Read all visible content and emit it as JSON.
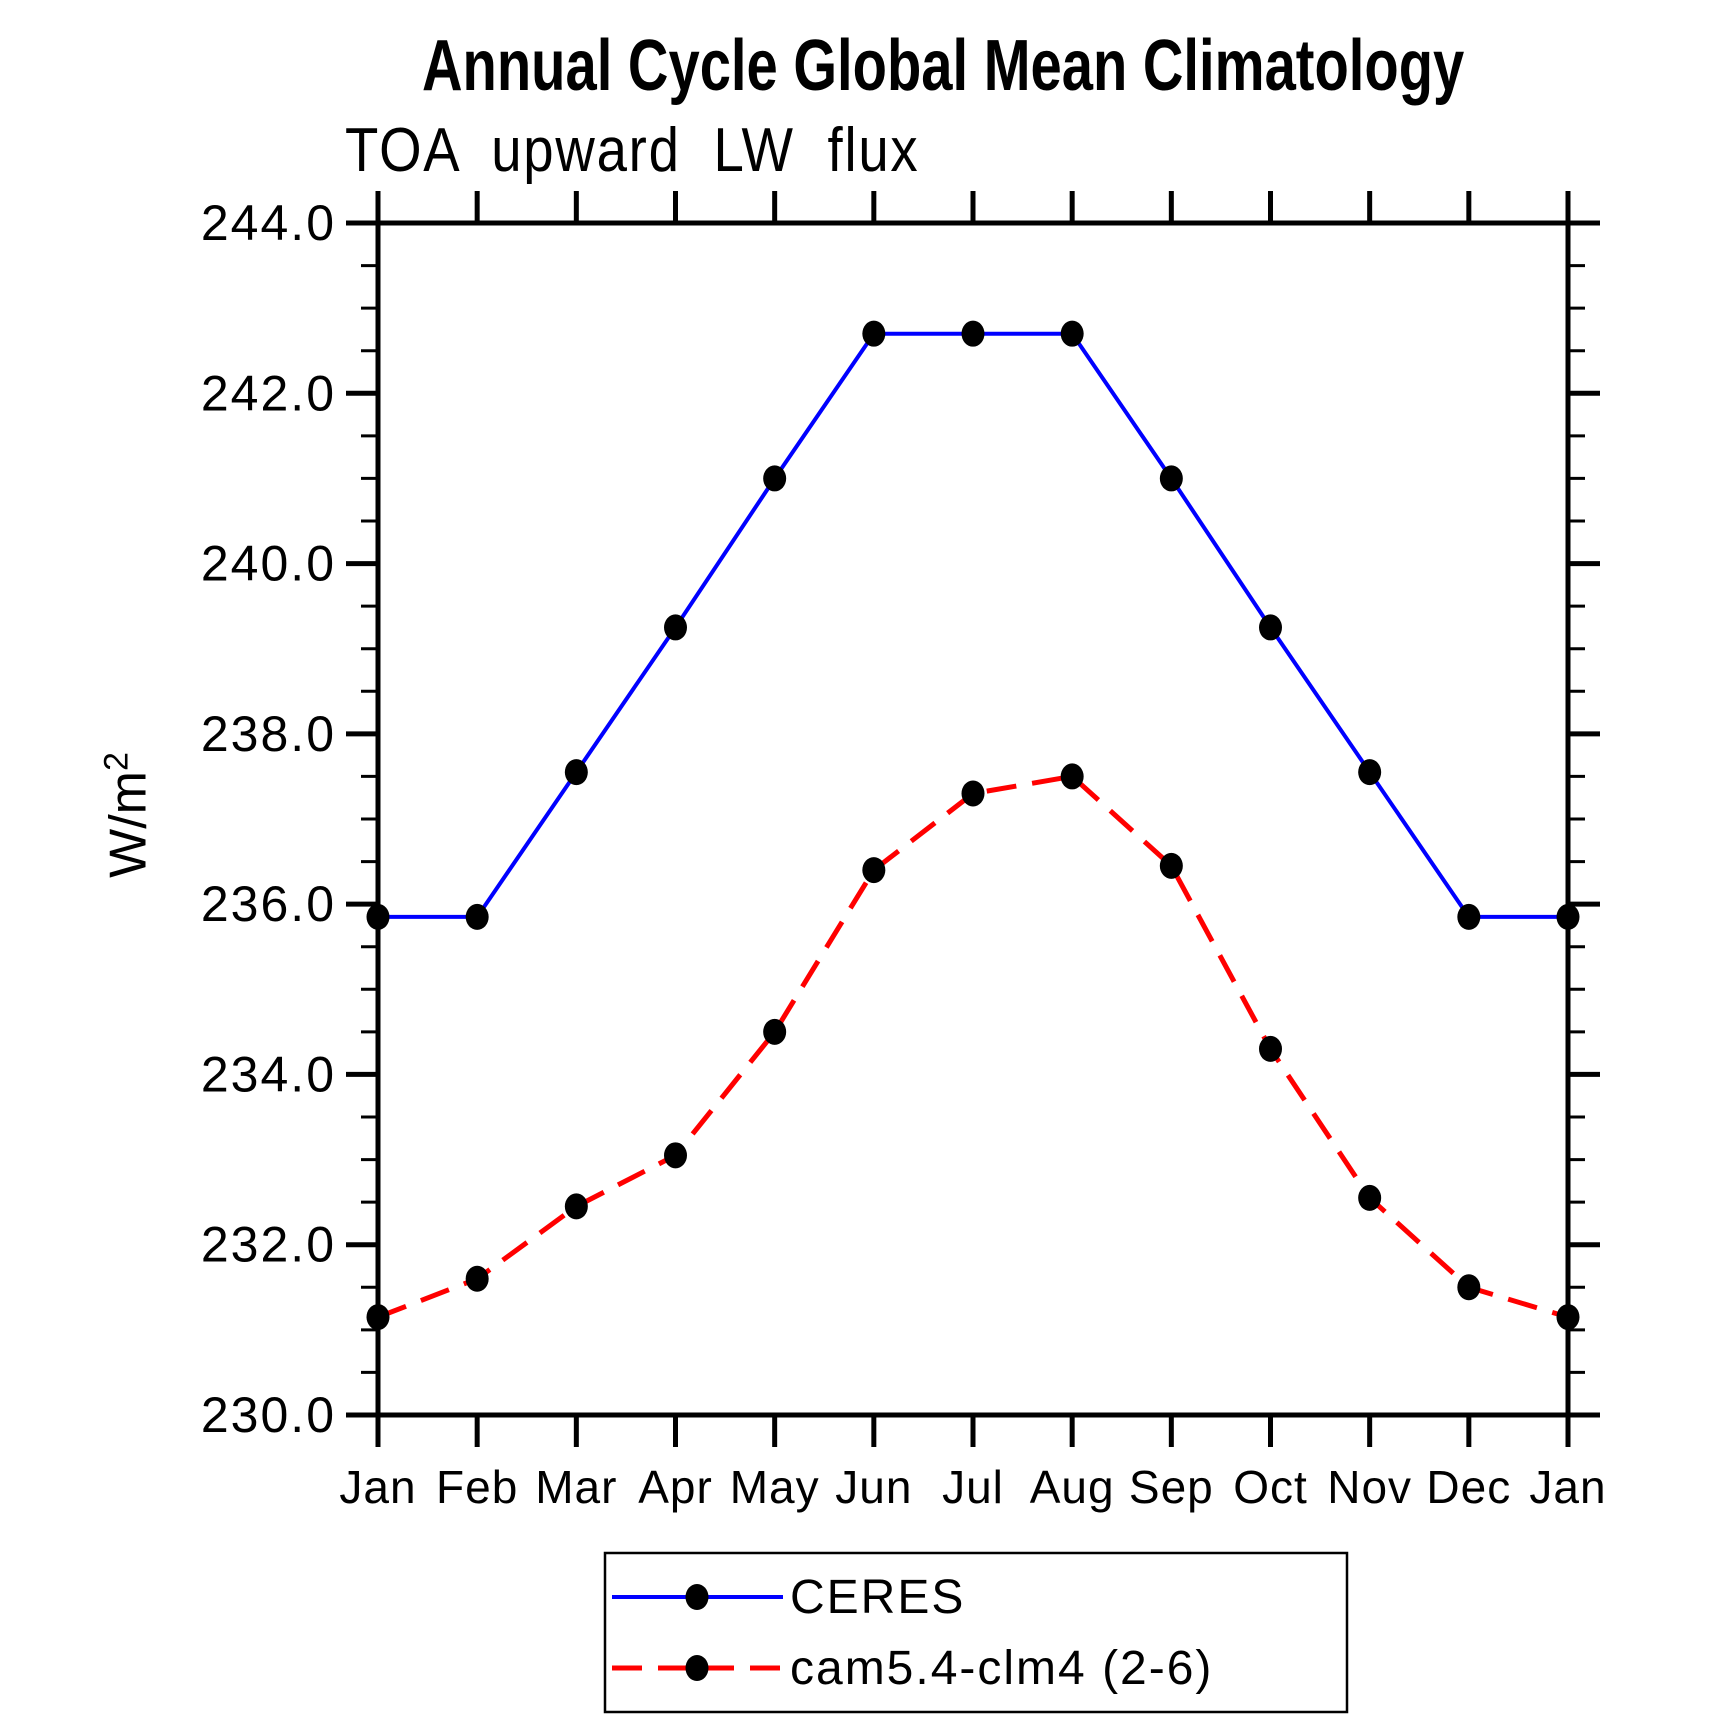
{
  "title": "Annual Cycle Global Mean Climatology",
  "subtitle": "TOA upward LW flux",
  "y_axis_label": {
    "base": "W/m",
    "superscript": "2"
  },
  "chart_data": {
    "type": "line",
    "categories": [
      "Jan",
      "Feb",
      "Mar",
      "Apr",
      "May",
      "Jun",
      "Jul",
      "Aug",
      "Sep",
      "Oct",
      "Nov",
      "Dec",
      "Jan"
    ],
    "series": [
      {
        "name": "CERES",
        "color": "#0000ff",
        "line_style": "solid",
        "marker": "filled-black-dot",
        "values": [
          235.85,
          235.85,
          237.55,
          239.25,
          241.0,
          242.7,
          242.7,
          242.7,
          241.0,
          239.25,
          237.55,
          235.85,
          235.85
        ]
      },
      {
        "name": "cam5.4-clm4 (2-6)",
        "color": "#ff0000",
        "line_style": "dashed",
        "marker": "filled-black-dot",
        "values": [
          231.15,
          231.6,
          232.45,
          233.05,
          234.5,
          236.4,
          237.3,
          237.5,
          236.45,
          234.3,
          232.55,
          231.5,
          231.15
        ]
      }
    ],
    "xlabel": "",
    "ylabel": "W/m2",
    "ylim": [
      230.0,
      244.0
    ],
    "ytick_major_interval": 2.0,
    "ytick_minor_interval": 0.5,
    "ytick_labels": [
      "244.0",
      "242.0",
      "240.0",
      "238.0",
      "236.0",
      "234.0",
      "232.0",
      "230.0"
    ],
    "grid": false,
    "axis_color": "#000000",
    "marker_color": "#000000",
    "legend_position": "bottom-center"
  }
}
